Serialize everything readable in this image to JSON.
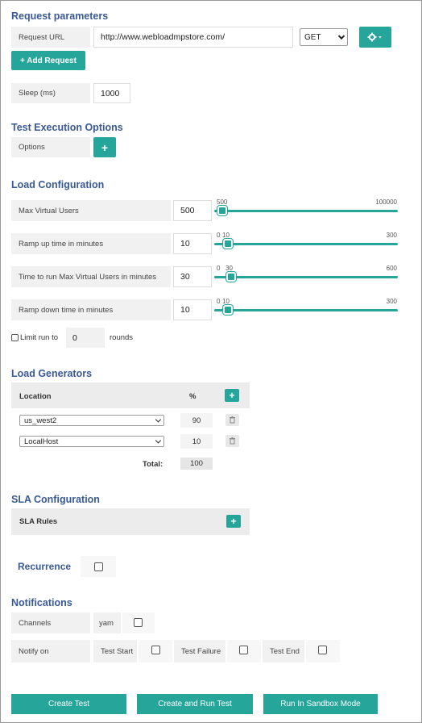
{
  "request_parameters": {
    "heading": "Request parameters",
    "url_label": "Request URL",
    "url_value": "http://www.webloadmpstore.com/",
    "method_value": "GET",
    "add_request_label": "+ Add Request",
    "sleep_label": "Sleep (ms)",
    "sleep_value": "1000"
  },
  "test_execution": {
    "heading": "Test Execution Options",
    "options_label": "Options",
    "add_label": "+"
  },
  "load_configuration": {
    "heading": "Load Configuration",
    "rows": [
      {
        "label": "Max Virtual Users",
        "value": "500",
        "min": "500",
        "mid": "",
        "max": "100000",
        "level": 0
      },
      {
        "label": "Ramp up time in minutes",
        "value": "10",
        "min": "0",
        "mid": "10",
        "max": "300",
        "level": 0.033
      },
      {
        "label": "Time to run Max Virtual Users in minutes",
        "value": "30",
        "min": "0",
        "mid": "30",
        "max": "600",
        "level": 0.05
      },
      {
        "label": "Ramp down time in minutes",
        "value": "10",
        "min": "0",
        "mid": "10",
        "max": "300",
        "level": 0.033
      }
    ],
    "limit_run_label": "Limit run to",
    "limit_run_value": "0",
    "rounds_label": "rounds"
  },
  "load_generators": {
    "heading": "Load Generators",
    "col_location": "Location",
    "col_percent": "%",
    "add_label": "+",
    "rows": [
      {
        "location": "us_west2",
        "percent": "90"
      },
      {
        "location": "LocalHost",
        "percent": "10"
      }
    ],
    "total_label": "Total:",
    "total_value": "100"
  },
  "sla_configuration": {
    "heading": "SLA Configuration",
    "rules_label": "SLA Rules",
    "add_label": "+"
  },
  "recurrence": {
    "label": "Recurrence"
  },
  "notifications": {
    "heading": "Notifications",
    "channels_label": "Channels",
    "channel_name": "yam",
    "notify_on_label": "Notify on",
    "test_start_label": "Test Start",
    "test_failure_label": "Test Failure",
    "test_end_label": "Test End"
  },
  "actions": {
    "create_test": "Create Test",
    "create_and_run": "Create and Run Test",
    "run_sandbox": "Run In Sandbox Mode"
  },
  "colors": {
    "accent": "#26a69a",
    "heading": "#3a5a95",
    "label_bg": "#f1f1f1"
  },
  "icons": [
    "gear-icon",
    "chevron-down-icon",
    "trash-icon",
    "plus-icon",
    "checkbox"
  ]
}
